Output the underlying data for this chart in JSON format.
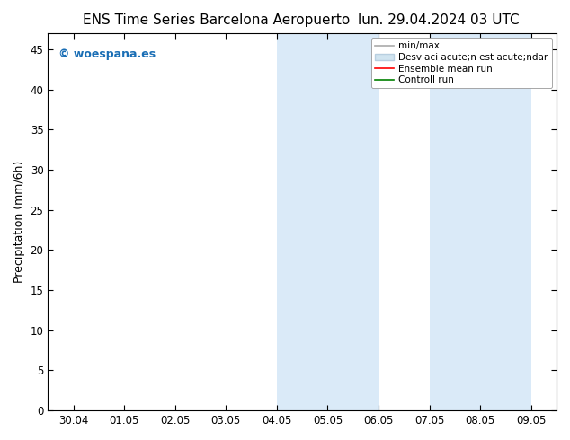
{
  "title_left": "ENS Time Series Barcelona Aeropuerto",
  "title_right": "lun. 29.04.2024 03 UTC",
  "ylabel": "Precipitation (mm/6h)",
  "watermark": "© woespana.es",
  "ylim": [
    0,
    47
  ],
  "yticks": [
    0,
    5,
    10,
    15,
    20,
    25,
    30,
    35,
    40,
    45
  ],
  "xtick_labels": [
    "30.04",
    "01.05",
    "02.05",
    "03.05",
    "04.05",
    "05.05",
    "06.05",
    "07.05",
    "08.05",
    "09.05"
  ],
  "shade_bands": [
    {
      "xmin": 4.0,
      "xmax": 6.0,
      "color": "#daeaf8"
    },
    {
      "xmin": 7.0,
      "xmax": 9.0,
      "color": "#daeaf8"
    }
  ],
  "legend_entries": [
    {
      "label": "min/max",
      "color": "#aaaaaa",
      "lw": 1.2
    },
    {
      "label": "Desviaci acute;n est acute;ndar",
      "color": "#ccddee",
      "lw": 8
    },
    {
      "label": "Ensemble mean run",
      "color": "red",
      "lw": 1.2
    },
    {
      "label": "Controll run",
      "color": "green",
      "lw": 1.2
    }
  ],
  "background_color": "#ffffff",
  "plot_bg_color": "#ffffff",
  "title_fontsize": 11,
  "watermark_color": "#1a6eb5",
  "axis_label_fontsize": 9,
  "tick_fontsize": 8.5,
  "legend_fontsize": 7.5
}
